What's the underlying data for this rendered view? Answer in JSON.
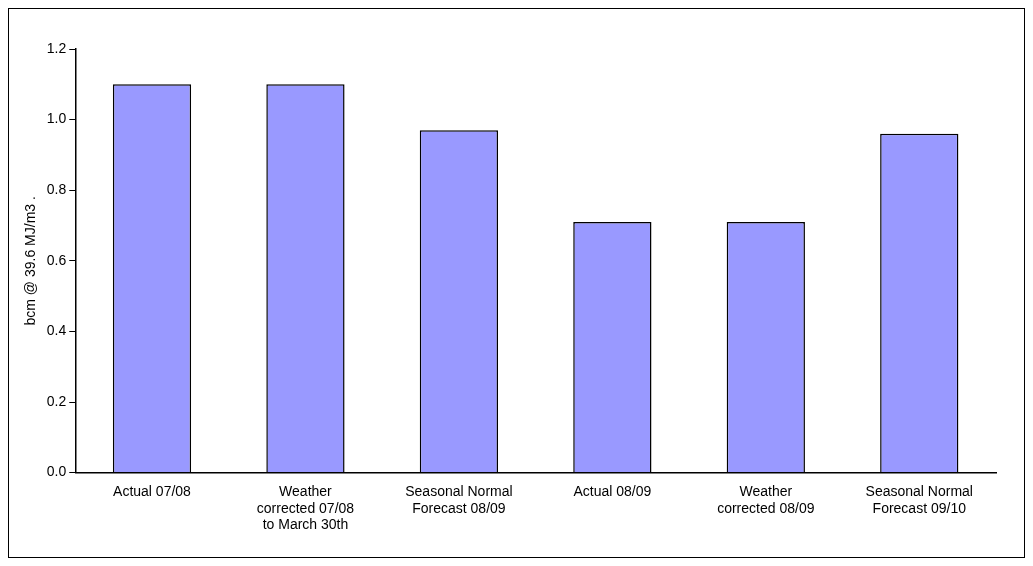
{
  "chart_data": {
    "type": "bar",
    "ylabel": "bcm @ 39.6 MJ/m3 .",
    "categories": [
      "Actual 07/08",
      "Weather corrected 07/08 to March 30th",
      "Seasonal Normal Forecast 08/09",
      "Actual 08/09",
      "Weather corrected 08/09",
      "Seasonal Normal Forecast 09/10"
    ],
    "values": [
      1.1,
      1.1,
      0.97,
      0.71,
      0.71,
      0.96
    ],
    "color": "#9999ff",
    "ylim": [
      0,
      1.2
    ],
    "yticks": [
      {
        "value": 0,
        "label": "0.0"
      },
      {
        "value": 0.2,
        "label": "0.2"
      },
      {
        "value": 0.4,
        "label": "0.4"
      },
      {
        "value": 0.6,
        "label": "0.6"
      },
      {
        "value": 0.8,
        "label": "0.8"
      },
      {
        "value": 1,
        "label": "1.0"
      },
      {
        "value": 1.2,
        "label": "1.2"
      }
    ],
    "grid": false,
    "legend": false
  }
}
